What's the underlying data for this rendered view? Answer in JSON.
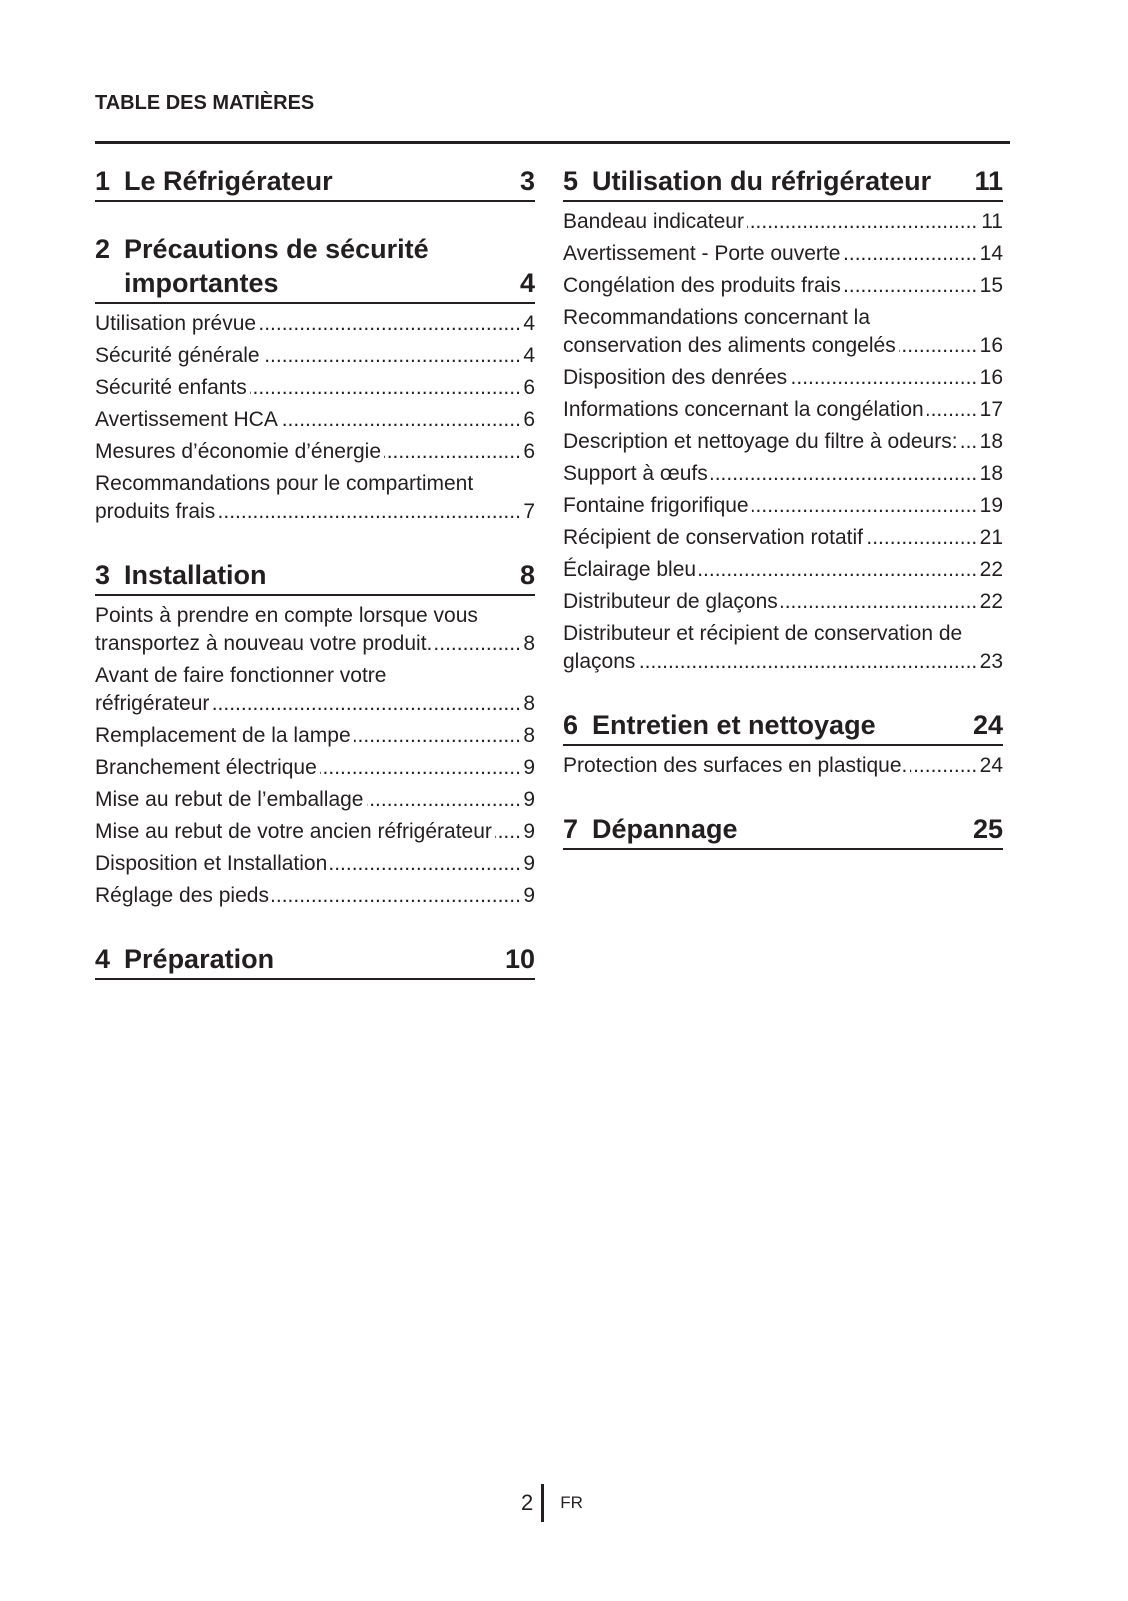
{
  "header": {
    "title": "TABLE DES MATIÈRES"
  },
  "columns": [
    {
      "sections": [
        {
          "number": "1",
          "title": "Le Réfrigérateur",
          "page": 3,
          "entries": []
        },
        {
          "number": "2",
          "title": "Précautions de sécurité importantes",
          "page": 4,
          "entries": [
            {
              "text": "Utilisation prévue",
              "page": 4
            },
            {
              "text": "Sécurité générale",
              "page": 4
            },
            {
              "text": "Sécurité enfants",
              "page": 6
            },
            {
              "text": "Avertissement HCA",
              "page": 6
            },
            {
              "text": "Mesures d’économie d’énergie",
              "page": 6
            },
            {
              "text": "Recommandations pour le compartiment produits frais",
              "page": 7
            }
          ]
        },
        {
          "number": "3",
          "title": "Installation",
          "page": 8,
          "entries": [
            {
              "text": "Points à prendre en compte lorsque vous transportez à nouveau votre produit.",
              "page": 8
            },
            {
              "text": "Avant de faire fonctionner votre réfrigérateur",
              "page": 8
            },
            {
              "text": "Remplacement de la lampe",
              "page": 8
            },
            {
              "text": "Branchement électrique",
              "page": 9
            },
            {
              "text": "Mise au rebut de l’emballage",
              "page": 9
            },
            {
              "text": "Mise au rebut de votre ancien réfrigérateur",
              "page": 9
            },
            {
              "text": "Disposition et Installation",
              "page": 9
            },
            {
              "text": "Réglage des pieds",
              "page": 9
            }
          ]
        },
        {
          "number": "4",
          "title": "Préparation",
          "page": 10,
          "entries": []
        }
      ]
    },
    {
      "sections": [
        {
          "number": "5",
          "title": "Utilisation du réfrigérateur",
          "page": 11,
          "entries": [
            {
              "text": "Bandeau indicateur",
              "page": 11
            },
            {
              "text": "Avertissement - Porte ouverte",
              "page": 14
            },
            {
              "text": "Congélation des produits frais",
              "page": 15
            },
            {
              "text": "Recommandations concernant la conservation des aliments congelés",
              "page": 16
            },
            {
              "text": "Disposition des denrées",
              "page": 16
            },
            {
              "text": "Informations concernant la congélation",
              "page": 17
            },
            {
              "text": "Description et nettoyage du filtre à odeurs:",
              "page": 18
            },
            {
              "text": "Support à œufs",
              "page": 18
            },
            {
              "text": "Fontaine frigorifique",
              "page": 19
            },
            {
              "text": "Récipient de conservation rotatif",
              "page": 21
            },
            {
              "text": "Éclairage bleu",
              "page": 22
            },
            {
              "text": "Distributeur de glaçons",
              "page": 22
            },
            {
              "text": "Distributeur et récipient de conservation de glaçons",
              "page": 23
            }
          ]
        },
        {
          "number": "6",
          "title": "Entretien et nettoyage",
          "page": 24,
          "entries": [
            {
              "text": "Protection des surfaces en plastique.",
              "page": 24
            }
          ]
        },
        {
          "number": "7",
          "title": "Dépannage",
          "page": 25,
          "entries": []
        }
      ]
    }
  ],
  "footer": {
    "page": 2,
    "language": "FR"
  }
}
